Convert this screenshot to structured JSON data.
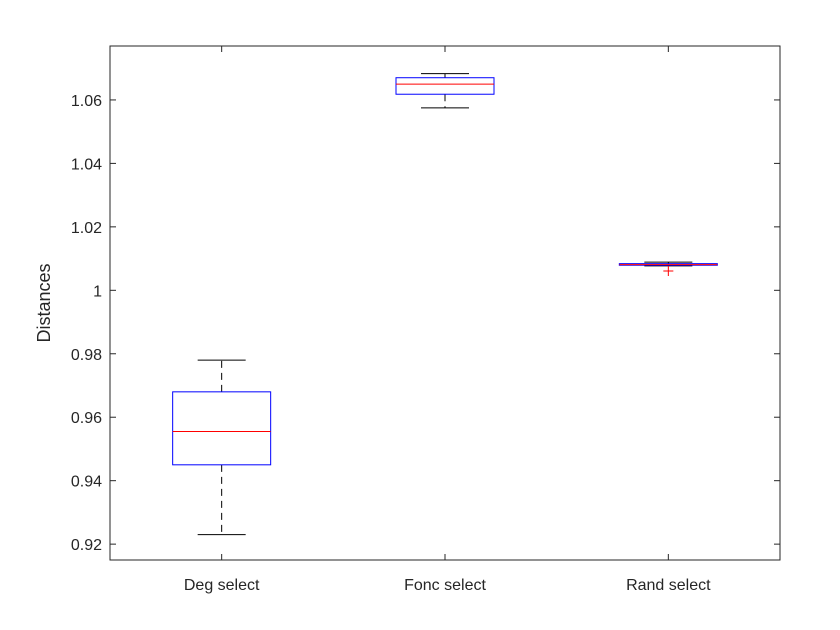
{
  "chart_data": {
    "type": "box",
    "title": "",
    "xlabel": "",
    "ylabel": "Distances",
    "ylim": [
      0.915,
      1.077
    ],
    "yticks": [
      0.92,
      0.94,
      0.96,
      0.98,
      1,
      1.02,
      1.04,
      1.06
    ],
    "ytick_labels": [
      "0.92",
      "0.94",
      "0.96",
      "0.98",
      "1",
      "1.02",
      "1.04",
      "1.06"
    ],
    "categories": [
      "Deg select",
      "Fonc select",
      "Rand select"
    ],
    "boxes": [
      {
        "category": "Deg select",
        "whisker_low": 0.923,
        "q1": 0.945,
        "median": 0.9555,
        "q3": 0.968,
        "whisker_high": 0.978,
        "outliers": []
      },
      {
        "category": "Fonc select",
        "whisker_low": 1.0575,
        "q1": 1.0618,
        "median": 1.065,
        "q3": 1.067,
        "whisker_high": 1.0683,
        "outliers": []
      },
      {
        "category": "Rand select",
        "whisker_low": 1.0077,
        "q1": 1.0079,
        "median": 1.0081,
        "q3": 1.0084,
        "whisker_high": 1.0089,
        "outliers": [
          1.0061
        ]
      }
    ],
    "grid": false,
    "colors": {
      "box": "#0000ff",
      "median": "#ff0000",
      "whisker": "#000000",
      "outlier": "#ff0000",
      "axis": "#262626"
    }
  }
}
